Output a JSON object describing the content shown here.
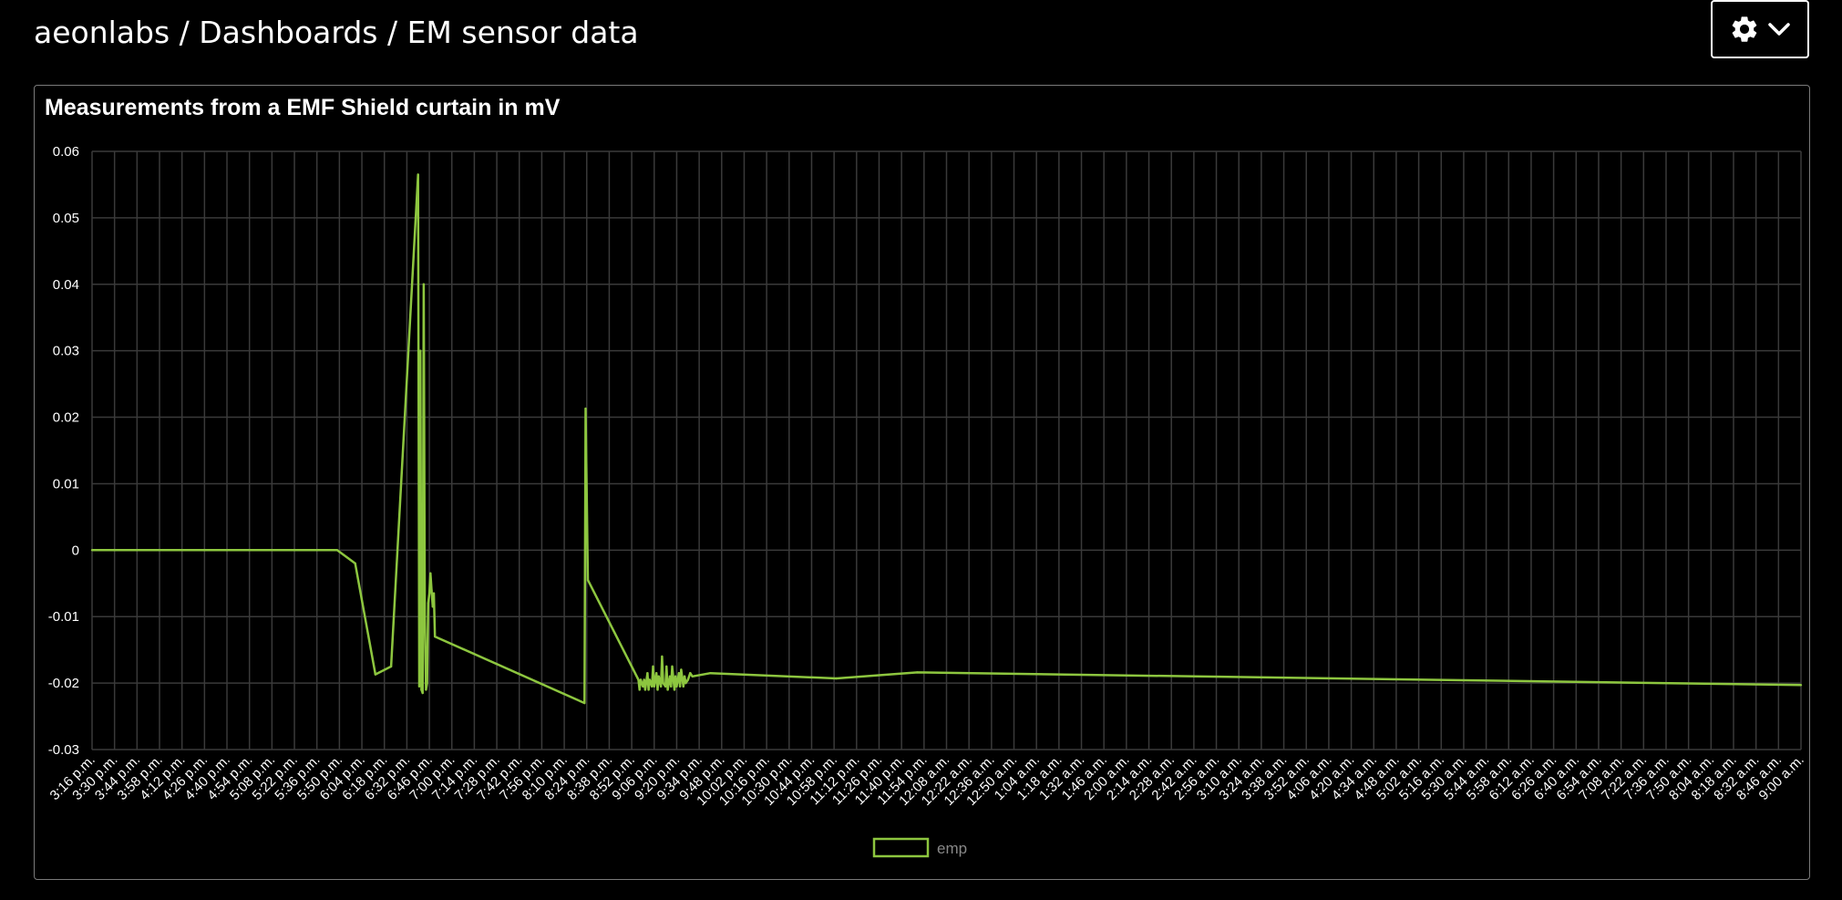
{
  "breadcrumb": {
    "text": "aeonlabs / Dashboards / EM sensor data"
  },
  "settings": {
    "icon": "gear-icon",
    "caret_icon": "chevron-down-icon"
  },
  "panel": {
    "title": "Measurements from a EMF Shield curtain in mV"
  },
  "colors": {
    "series": "#8dc63f",
    "grid": "#3a3a3a",
    "legend_text": "#888888"
  },
  "chart_data": {
    "type": "line",
    "title": "Measurements from a EMF Shield curtain in mV",
    "xlabel": "",
    "ylabel": "",
    "ylim": [
      -0.03,
      0.06
    ],
    "yticks": [
      "0.06",
      "0.05",
      "0.04",
      "0.03",
      "0.02",
      "0.01",
      "0",
      "-0.01",
      "-0.02",
      "-0.03"
    ],
    "grid": true,
    "legend_position": "bottom",
    "categories": [
      "3:16 p.m.",
      "3:30 p.m.",
      "3:44 p.m.",
      "3:58 p.m.",
      "4:12 p.m.",
      "4:26 p.m.",
      "4:40 p.m.",
      "4:54 p.m.",
      "5:08 p.m.",
      "5:22 p.m.",
      "5:36 p.m.",
      "5:50 p.m.",
      "6:04 p.m.",
      "6:18 p.m.",
      "6:32 p.m.",
      "6:46 p.m.",
      "7:00 p.m.",
      "7:14 p.m.",
      "7:28 p.m.",
      "7:42 p.m.",
      "7:56 p.m.",
      "8:10 p.m.",
      "8:24 p.m.",
      "8:38 p.m.",
      "8:52 p.m.",
      "9:06 p.m.",
      "9:20 p.m.",
      "9:34 p.m.",
      "9:48 p.m.",
      "10:02 p.m.",
      "10:16 p.m.",
      "10:30 p.m.",
      "10:44 p.m.",
      "10:58 p.m.",
      "11:12 p.m.",
      "11:26 p.m.",
      "11:40 p.m.",
      "11:54 p.m.",
      "12:08 a.m.",
      "12:22 a.m.",
      "12:36 a.m.",
      "12:50 a.m.",
      "1:04 a.m.",
      "1:18 a.m.",
      "1:32 a.m.",
      "1:46 a.m.",
      "2:00 a.m.",
      "2:14 a.m.",
      "2:28 a.m.",
      "2:42 a.m.",
      "2:56 a.m.",
      "3:10 a.m.",
      "3:24 a.m.",
      "3:38 a.m.",
      "3:52 a.m.",
      "4:06 a.m.",
      "4:20 a.m.",
      "4:34 a.m.",
      "4:48 a.m.",
      "5:02 a.m.",
      "5:16 a.m.",
      "5:30 a.m.",
      "5:44 a.m.",
      "5:58 a.m.",
      "6:12 a.m.",
      "6:26 a.m.",
      "6:40 a.m.",
      "6:54 a.m.",
      "7:08 a.m.",
      "7:22 a.m.",
      "7:36 a.m.",
      "7:50 a.m.",
      "8:04 a.m.",
      "8:18 a.m.",
      "8:32 a.m.",
      "8:46 a.m.",
      "9:00 a.m."
    ],
    "series": [
      {
        "name": "emp",
        "points": [
          [
            0,
            0
          ],
          [
            10.9,
            0
          ],
          [
            11.7,
            -0.002
          ],
          [
            12.6,
            -0.0187
          ],
          [
            13.3,
            -0.0175
          ],
          [
            14.5,
            0.0565
          ],
          [
            14.55,
            -0.0205
          ],
          [
            14.6,
            0.03
          ],
          [
            14.65,
            -0.021
          ],
          [
            14.7,
            -0.0215
          ],
          [
            14.75,
            0.04
          ],
          [
            14.8,
            -0.01
          ],
          [
            14.85,
            -0.021
          ],
          [
            14.9,
            -0.02
          ],
          [
            14.95,
            -0.008
          ],
          [
            15.0,
            -0.0065
          ],
          [
            15.05,
            -0.0035
          ],
          [
            15.1,
            -0.006
          ],
          [
            15.15,
            -0.0085
          ],
          [
            15.2,
            -0.0065
          ],
          [
            15.25,
            -0.013
          ],
          [
            21.9,
            -0.023
          ],
          [
            21.95,
            0.0213
          ],
          [
            22.05,
            -0.0045
          ],
          [
            24.3,
            -0.0195
          ],
          [
            24.35,
            -0.021
          ],
          [
            24.4,
            -0.0195
          ],
          [
            24.5,
            -0.0205
          ],
          [
            24.55,
            -0.0195
          ],
          [
            24.6,
            -0.021
          ],
          [
            24.7,
            -0.0185
          ],
          [
            24.75,
            -0.021
          ],
          [
            24.8,
            -0.0195
          ],
          [
            24.9,
            -0.0205
          ],
          [
            24.95,
            -0.0175
          ],
          [
            25.0,
            -0.0205
          ],
          [
            25.1,
            -0.0185
          ],
          [
            25.15,
            -0.021
          ],
          [
            25.2,
            -0.019
          ],
          [
            25.3,
            -0.0205
          ],
          [
            25.35,
            -0.016
          ],
          [
            25.4,
            -0.02
          ],
          [
            25.5,
            -0.0205
          ],
          [
            25.55,
            -0.0175
          ],
          [
            25.6,
            -0.021
          ],
          [
            25.7,
            -0.019
          ],
          [
            25.75,
            -0.0205
          ],
          [
            25.8,
            -0.0175
          ],
          [
            25.9,
            -0.021
          ],
          [
            25.95,
            -0.019
          ],
          [
            26.0,
            -0.0205
          ],
          [
            26.1,
            -0.0185
          ],
          [
            26.15,
            -0.0205
          ],
          [
            26.2,
            -0.018
          ],
          [
            26.3,
            -0.0205
          ],
          [
            26.35,
            -0.019
          ],
          [
            26.4,
            -0.02
          ],
          [
            26.5,
            -0.0195
          ],
          [
            26.6,
            -0.0185
          ],
          [
            26.7,
            -0.019
          ],
          [
            27.5,
            -0.0185
          ],
          [
            33.1,
            -0.0193
          ],
          [
            36.7,
            -0.0184
          ],
          [
            76,
            -0.0203
          ]
        ]
      }
    ]
  }
}
